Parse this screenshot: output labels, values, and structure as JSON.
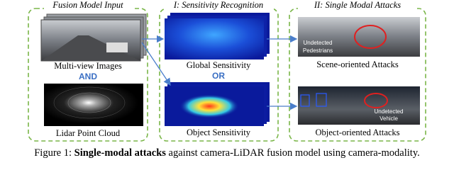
{
  "panels": [
    {
      "title": "Fusion Model Input",
      "items": [
        "Multi-view Images",
        "Lidar Point Cloud"
      ],
      "connector": "AND"
    },
    {
      "title": "I: Sensitivity Recognition",
      "items": [
        "Global Sensitivity",
        "Object Sensitivity"
      ],
      "connector": "OR"
    },
    {
      "title": "II: Single Modal Attacks",
      "items": [
        "Scene-oriented Attacks",
        "Object-oriented Attacks"
      ],
      "annotations": [
        [
          "Undetected",
          "Pedestrians"
        ],
        [
          "Undetected",
          "Vehicle"
        ]
      ]
    }
  ],
  "caption": {
    "label": "Figure 1:",
    "bold": "Single-modal attacks",
    "text": "against camera-LiDAR fusion model using camera-modality."
  }
}
